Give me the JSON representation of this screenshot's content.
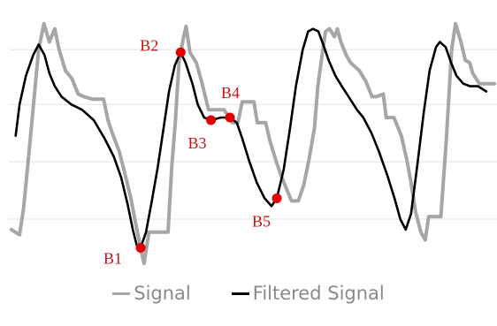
{
  "chart_data": {
    "type": "line",
    "title": "",
    "xlabel": "",
    "ylabel": "",
    "xlim": [
      0,
      100
    ],
    "ylim": [
      0,
      100
    ],
    "grid": true,
    "gridlines_y": [
      21,
      43,
      65,
      86
    ],
    "legend_position": "bottom-center",
    "series": [
      {
        "name": "Signal",
        "color": "#a6a6a6",
        "points": [
          [
            0.5,
            17
          ],
          [
            2.2,
            15
          ],
          [
            3.0,
            25
          ],
          [
            3.9,
            42
          ],
          [
            4.6,
            56
          ],
          [
            5.4,
            72
          ],
          [
            6.1,
            86
          ],
          [
            7.2,
            96
          ],
          [
            8.3,
            89
          ],
          [
            9.4,
            94
          ],
          [
            10.3,
            86
          ],
          [
            11.6,
            78
          ],
          [
            12.9,
            75
          ],
          [
            14.2,
            69
          ],
          [
            15.4,
            68
          ],
          [
            17.2,
            67
          ],
          [
            19.4,
            67
          ],
          [
            20.3,
            59
          ],
          [
            21.2,
            54
          ],
          [
            22.6,
            47
          ],
          [
            23.7,
            39
          ],
          [
            25.0,
            29
          ],
          [
            25.9,
            20
          ],
          [
            27.0,
            10
          ],
          [
            27.7,
            4
          ],
          [
            28.7,
            16
          ],
          [
            30.3,
            16
          ],
          [
            32.6,
            16
          ],
          [
            33.4,
            42
          ],
          [
            34.1,
            58
          ],
          [
            34.9,
            82
          ],
          [
            35.7,
            90
          ],
          [
            36.3,
            95
          ],
          [
            37.1,
            85
          ],
          [
            38.4,
            81
          ],
          [
            39.6,
            73
          ],
          [
            40.9,
            63
          ],
          [
            42.0,
            63
          ],
          [
            44.1,
            63
          ],
          [
            45.8,
            58
          ],
          [
            46.9,
            58
          ],
          [
            47.8,
            66
          ],
          [
            50.2,
            66
          ],
          [
            50.9,
            58
          ],
          [
            52.6,
            58
          ],
          [
            53.5,
            51
          ],
          [
            54.8,
            43
          ],
          [
            55.7,
            38
          ],
          [
            56.8,
            33
          ],
          [
            57.9,
            28
          ],
          [
            59.3,
            28
          ],
          [
            60.4,
            34
          ],
          [
            61.5,
            44
          ],
          [
            62.6,
            56
          ],
          [
            63.3,
            72
          ],
          [
            64.4,
            87
          ],
          [
            64.9,
            93
          ],
          [
            65.7,
            94
          ],
          [
            66.7,
            91
          ],
          [
            67.3,
            94
          ],
          [
            68.0,
            89
          ],
          [
            69.1,
            84
          ],
          [
            70.0,
            81
          ],
          [
            71.8,
            78
          ],
          [
            73.1,
            74
          ],
          [
            74.4,
            68
          ],
          [
            75.3,
            68
          ],
          [
            76.7,
            69
          ],
          [
            77.3,
            60
          ],
          [
            78.9,
            60
          ],
          [
            80.4,
            53
          ],
          [
            81.5,
            44
          ],
          [
            82.4,
            35
          ],
          [
            83.3,
            24
          ],
          [
            84.4,
            16
          ],
          [
            85.3,
            13
          ],
          [
            86.0,
            22
          ],
          [
            87.1,
            22
          ],
          [
            88.5,
            22
          ],
          [
            89.6,
            51
          ],
          [
            90.7,
            86
          ],
          [
            91.5,
            96
          ],
          [
            92.6,
            89
          ],
          [
            93.5,
            82
          ],
          [
            94.4,
            81
          ],
          [
            95.0,
            77
          ],
          [
            96.4,
            73
          ],
          [
            97.8,
            73
          ],
          [
            99.5,
            73
          ]
        ]
      },
      {
        "name": "Filtered Signal",
        "color": "#000000",
        "points": [
          [
            1.4,
            53
          ],
          [
            2.2,
            65
          ],
          [
            3.5,
            76
          ],
          [
            5.0,
            84
          ],
          [
            6.1,
            88
          ],
          [
            7.3,
            84
          ],
          [
            8.3,
            77
          ],
          [
            9.4,
            72
          ],
          [
            10.8,
            68
          ],
          [
            12.8,
            65
          ],
          [
            15.0,
            63
          ],
          [
            17.4,
            59
          ],
          [
            19.6,
            52
          ],
          [
            21.5,
            45
          ],
          [
            23.0,
            37
          ],
          [
            24.3,
            27
          ],
          [
            25.4,
            17
          ],
          [
            26.2,
            11
          ],
          [
            27.0,
            10
          ],
          [
            28.1,
            16
          ],
          [
            29.3,
            28
          ],
          [
            30.5,
            41
          ],
          [
            31.7,
            56
          ],
          [
            32.8,
            70
          ],
          [
            34.0,
            80
          ],
          [
            35.2,
            85
          ],
          [
            36.2,
            81
          ],
          [
            37.6,
            73
          ],
          [
            38.7,
            65
          ],
          [
            40.0,
            60
          ],
          [
            41.4,
            59
          ],
          [
            43.5,
            60
          ],
          [
            45.3,
            60
          ],
          [
            46.7,
            58
          ],
          [
            47.8,
            52
          ],
          [
            49.3,
            43
          ],
          [
            50.8,
            35
          ],
          [
            52.4,
            29
          ],
          [
            53.8,
            26
          ],
          [
            54.9,
            29
          ],
          [
            56.3,
            40
          ],
          [
            57.6,
            56
          ],
          [
            58.8,
            72
          ],
          [
            60.2,
            86
          ],
          [
            61.3,
            93
          ],
          [
            62.3,
            94
          ],
          [
            63.4,
            93
          ],
          [
            64.4,
            88
          ],
          [
            65.5,
            82
          ],
          [
            66.9,
            76
          ],
          [
            68.2,
            72
          ],
          [
            69.6,
            68
          ],
          [
            71.3,
            63
          ],
          [
            72.6,
            60
          ],
          [
            74.3,
            54
          ],
          [
            75.8,
            47
          ],
          [
            77.5,
            38
          ],
          [
            79.0,
            29
          ],
          [
            80.2,
            21
          ],
          [
            81.3,
            17
          ],
          [
            82.4,
            23
          ],
          [
            83.7,
            42
          ],
          [
            85.0,
            62
          ],
          [
            86.2,
            78
          ],
          [
            87.5,
            87
          ],
          [
            88.3,
            89
          ],
          [
            89.5,
            87
          ],
          [
            90.6,
            81
          ],
          [
            91.7,
            76
          ],
          [
            93.1,
            73
          ],
          [
            94.5,
            72
          ],
          [
            96.1,
            72
          ],
          [
            97.8,
            70
          ]
        ]
      }
    ],
    "annotations": [
      {
        "label": "B1",
        "x": 27.0,
        "y": 10,
        "color": "#e00000"
      },
      {
        "label": "B2",
        "x": 35.2,
        "y": 85,
        "color": "#e00000"
      },
      {
        "label": "B3",
        "x": 41.4,
        "y": 59,
        "color": "#e00000"
      },
      {
        "label": "B4",
        "x": 45.3,
        "y": 60,
        "color": "#e00000"
      },
      {
        "label": "B5",
        "x": 54.9,
        "y": 29,
        "color": "#e00000"
      }
    ]
  },
  "legend": {
    "signal_label": "Signal",
    "filtered_label": "Filtered Signal"
  }
}
